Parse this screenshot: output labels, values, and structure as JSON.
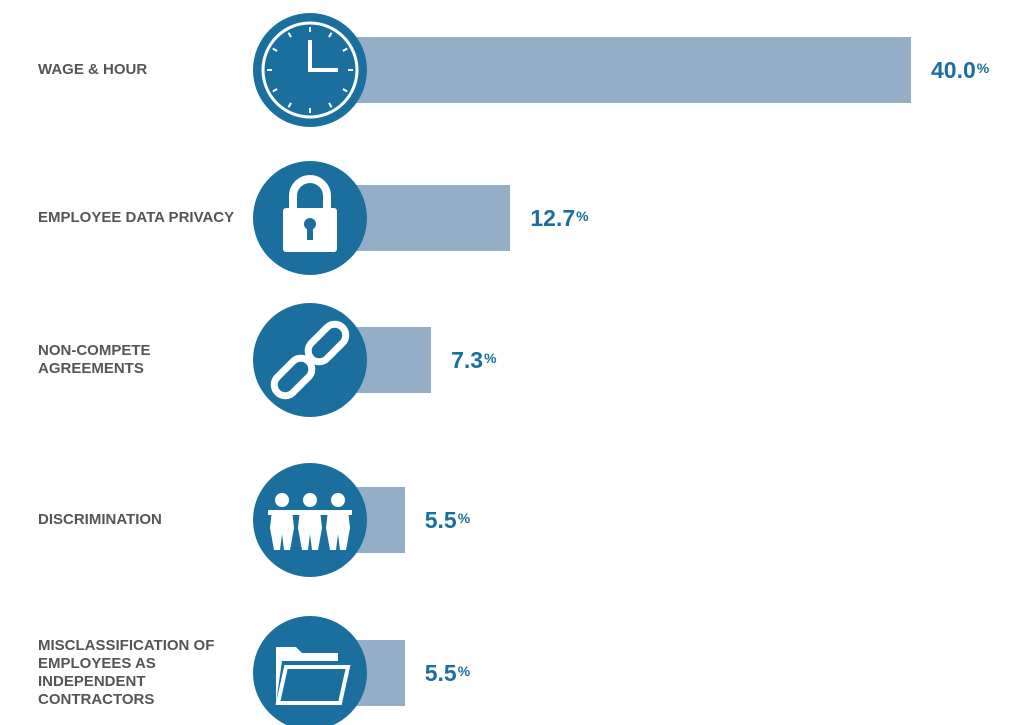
{
  "chart_data": {
    "type": "bar",
    "orientation": "horizontal",
    "categories": [
      "WAGE & HOUR",
      "EMPLOYEE DATA PRIVACY",
      "NON-COMPETE AGREEMENTS",
      "DISCRIMINATION",
      "MISCLASSIFICATION OF EMPLOYEES AS INDEPENDENT CONTRACTORS"
    ],
    "values": [
      40.0,
      12.7,
      7.3,
      5.5,
      5.5
    ],
    "value_labels": [
      "40.0%",
      "12.7%",
      "7.3%",
      "5.5%",
      "5.5%"
    ],
    "color": "#93aec6",
    "icon_color": "#1b6f9f",
    "label_color": "#1b6f9f"
  }
}
